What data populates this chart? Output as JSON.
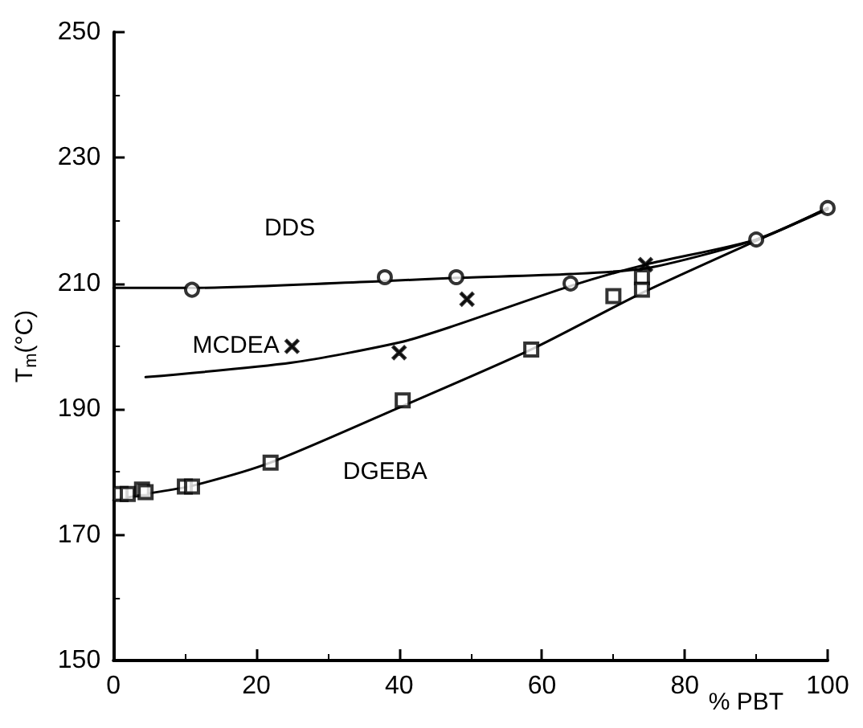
{
  "chart_data": {
    "type": "scatter",
    "xlabel": "% PBT",
    "ylabel": "T$_{m}$(°C)",
    "xlim": [
      0,
      100
    ],
    "xticks": [
      0,
      20,
      40,
      60,
      80,
      100
    ],
    "ylim": [
      150,
      250
    ],
    "yticks": [
      150,
      170,
      190,
      210,
      230,
      250
    ],
    "grid": false,
    "legend": false,
    "series": [
      {
        "name": "DDS",
        "marker": "circle",
        "color": "#000000",
        "x": [
          11,
          38,
          48,
          64,
          90,
          100
        ],
        "values": [
          209,
          211,
          211,
          210,
          217,
          222
        ]
      },
      {
        "name": "MCDEA",
        "marker": "cross",
        "color": "#000000",
        "x": [
          25,
          40,
          49.5,
          74.5
        ],
        "values": [
          200,
          199,
          207.5,
          213
        ]
      },
      {
        "name": "DGEBA",
        "marker": "square",
        "color": "#000000",
        "x": [
          1,
          2,
          4,
          4.5,
          10,
          11,
          22,
          40.5,
          58.5,
          70,
          74,
          74
        ],
        "values": [
          176.5,
          176.5,
          177.2,
          176.8,
          177.7,
          177.7,
          181.5,
          191.4,
          199.5,
          208,
          211,
          209
        ]
      },
      {
        "type": "line",
        "marker": "none",
        "color": "#000000",
        "x": [
          0,
          11,
          38,
          48,
          64,
          75,
          90,
          100
        ],
        "values": [
          209.3,
          209.3,
          210.4,
          210.9,
          211.5,
          212.5,
          217,
          222
        ]
      },
      {
        "type": "line",
        "marker": "none",
        "color": "#000000",
        "x": [
          4.5,
          25,
          40,
          47,
          64,
          74.5,
          90,
          100
        ],
        "values": [
          195.1,
          197.4,
          200.6,
          203,
          209.6,
          213,
          217,
          222
        ]
      },
      {
        "type": "line",
        "marker": "none",
        "color": "#000000",
        "x": [
          0,
          5,
          11,
          22,
          40.5,
          58.5,
          74,
          90,
          100
        ],
        "values": [
          175.5,
          176.6,
          177.8,
          181.5,
          190.5,
          199.5,
          208.5,
          216.8,
          221.8
        ]
      }
    ]
  }
}
